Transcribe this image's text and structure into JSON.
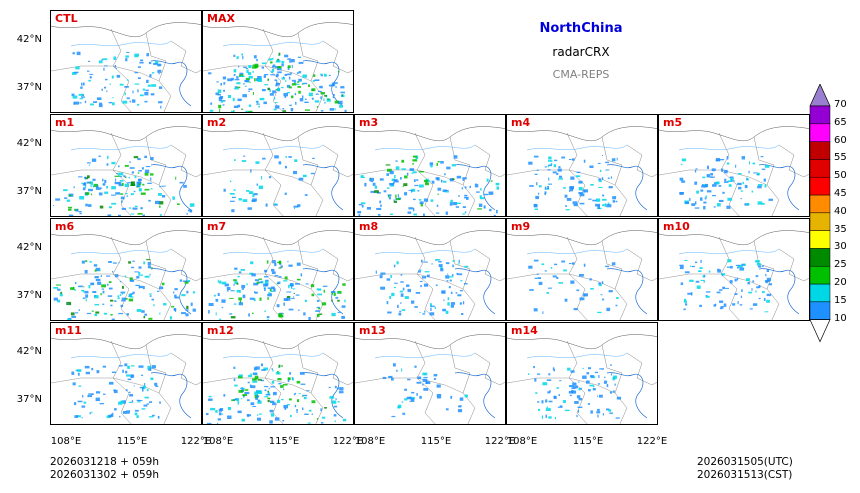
{
  "header": {
    "region": "NorthChina",
    "variable": "radarCRX",
    "model": "CMA-REPS",
    "region_color": "#0000dd",
    "model_color": "#808080"
  },
  "panels": [
    {
      "label": "CTL",
      "precip": "light"
    },
    {
      "label": "MAX",
      "precip": "heavy"
    },
    {
      "label": "m1",
      "precip": "south"
    },
    {
      "label": "m2",
      "precip": "sparse"
    },
    {
      "label": "m3",
      "precip": "south"
    },
    {
      "label": "m4",
      "precip": "light"
    },
    {
      "label": "m5",
      "precip": "light"
    },
    {
      "label": "m6",
      "precip": "south"
    },
    {
      "label": "m7",
      "precip": "south"
    },
    {
      "label": "m8",
      "precip": "light"
    },
    {
      "label": "m9",
      "precip": "sparse"
    },
    {
      "label": "m10",
      "precip": "light"
    },
    {
      "label": "m11",
      "precip": "light"
    },
    {
      "label": "m12",
      "precip": "south"
    },
    {
      "label": "m13",
      "precip": "sparse"
    },
    {
      "label": "m14",
      "precip": "light"
    }
  ],
  "y_ticks": [
    "42°N",
    "37°N"
  ],
  "x_ticks": [
    "108°E",
    "115°E",
    "122°E"
  ],
  "colorbar": {
    "levels": [
      "10",
      "15",
      "20",
      "25",
      "30",
      "35",
      "40",
      "45",
      "50",
      "55",
      "60",
      "65",
      "70"
    ],
    "colors": [
      "#1e90ff",
      "#00d7e6",
      "#00c000",
      "#008a00",
      "#ffff00",
      "#e6b400",
      "#ff8c00",
      "#ff0000",
      "#e00000",
      "#c00000",
      "#ff00ff",
      "#9400d3",
      "#9a7fd0"
    ]
  },
  "footer": {
    "init_line1": "2026031218  +  059h",
    "init_line2": "2026031302  +  059h",
    "valid_utc": "2026031505(UTC)",
    "valid_cst": "2026031513(CST)"
  }
}
